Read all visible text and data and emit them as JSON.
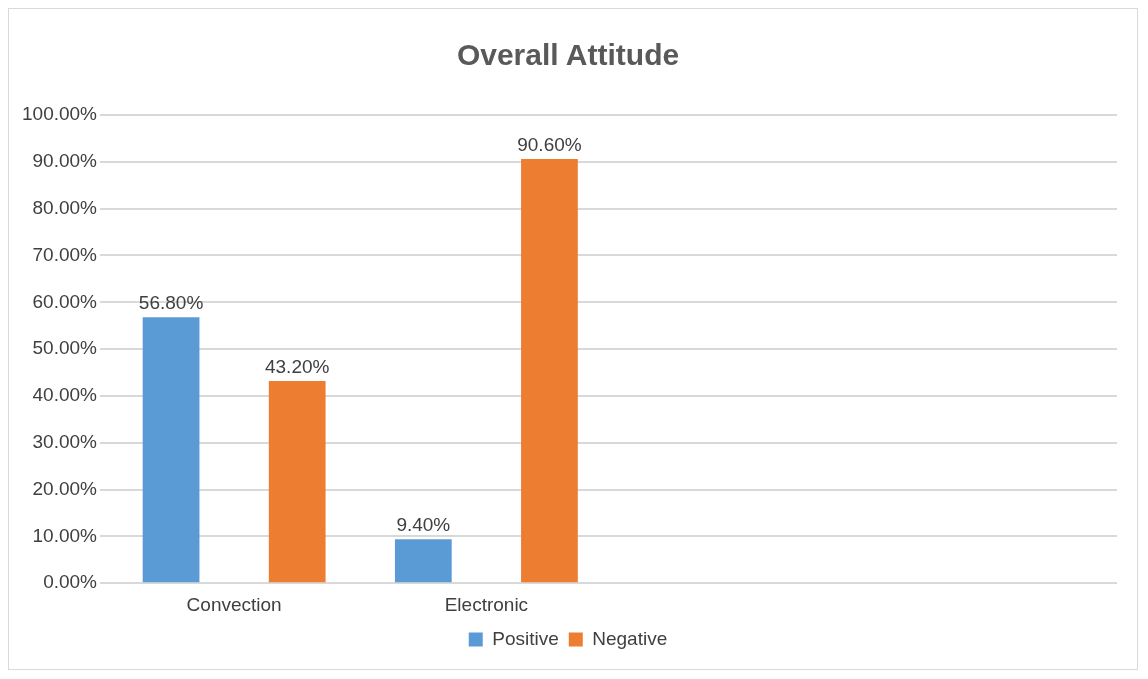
{
  "chart_data": {
    "type": "bar",
    "title": "Overall Attitude",
    "categories": [
      "Convection",
      "Electronic",
      null,
      null
    ],
    "series": [
      {
        "name": "Positive",
        "color": "#5b9bd5",
        "values": [
          56.8,
          9.4,
          null,
          null
        ],
        "value_labels": [
          "56.80%",
          "9.40%",
          null,
          null
        ]
      },
      {
        "name": "Negative",
        "color": "#ed7d31",
        "values": [
          43.2,
          90.6,
          null,
          null
        ],
        "value_labels": [
          "43.20%",
          "90.60%",
          null,
          null
        ]
      }
    ],
    "ylim": [
      0,
      100
    ],
    "yticks": [
      {
        "value": 0,
        "label": "0.00%"
      },
      {
        "value": 10,
        "label": "10.00%"
      },
      {
        "value": 20,
        "label": "20.00%"
      },
      {
        "value": 30,
        "label": "30.00%"
      },
      {
        "value": 40,
        "label": "40.00%"
      },
      {
        "value": 50,
        "label": "50.00%"
      },
      {
        "value": 60,
        "label": "60.00%"
      },
      {
        "value": 70,
        "label": "70.00%"
      },
      {
        "value": 80,
        "label": "80.00%"
      },
      {
        "value": 90,
        "label": "90.00%"
      },
      {
        "value": 100,
        "label": "100.00%"
      }
    ],
    "grid": "y",
    "legend": "bottom"
  }
}
